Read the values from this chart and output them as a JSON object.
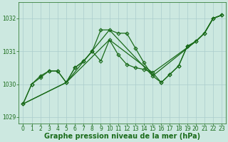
{
  "bg_color": "#cce8e0",
  "grid_color": "#aacccc",
  "line_color": "#1a6b1a",
  "xlabel": "Graphe pression niveau de la mer (hPa)",
  "ylim": [
    1028.8,
    1032.5
  ],
  "xlim": [
    -0.5,
    23.5
  ],
  "yticks": [
    1029,
    1030,
    1031,
    1032
  ],
  "xticks": [
    0,
    1,
    2,
    3,
    4,
    5,
    6,
    7,
    8,
    9,
    10,
    11,
    12,
    13,
    14,
    15,
    16,
    17,
    18,
    19,
    20,
    21,
    22,
    23
  ],
  "series_solid": [
    {
      "x": [
        0,
        1,
        2,
        3,
        4,
        5,
        6,
        7,
        8,
        9,
        10,
        11,
        12,
        13,
        14,
        15,
        16,
        17,
        18,
        19,
        20,
        21,
        22,
        23
      ],
      "y": [
        1029.4,
        1030.0,
        1030.2,
        1030.4,
        1030.4,
        1030.05,
        1030.5,
        1030.7,
        1031.0,
        1031.65,
        1031.65,
        1031.55,
        1031.55,
        1031.1,
        1030.65,
        1030.25,
        1030.05,
        1030.3,
        1030.55,
        1031.15,
        1031.3,
        1031.55,
        1032.0,
        1032.1
      ],
      "marker": "D",
      "markersize": 2.5,
      "linewidth": 0.9,
      "linestyle": "-"
    },
    {
      "x": [
        0,
        1,
        2,
        3,
        4,
        5,
        6,
        7,
        8,
        9,
        10,
        11,
        12,
        13,
        14,
        15,
        16,
        17,
        18,
        19,
        20,
        21,
        22,
        23
      ],
      "y": [
        1029.4,
        1030.0,
        1030.25,
        1030.4,
        1030.4,
        1030.05,
        1030.5,
        1030.7,
        1031.0,
        1030.7,
        1031.35,
        1030.9,
        1030.6,
        1030.5,
        1030.45,
        1030.35,
        1030.05,
        1030.3,
        1030.55,
        1031.15,
        1031.3,
        1031.55,
        1032.0,
        1032.1
      ],
      "marker": "D",
      "markersize": 2.5,
      "linewidth": 0.9,
      "linestyle": "-"
    },
    {
      "x": [
        0,
        5,
        10,
        15,
        20,
        21,
        22,
        23
      ],
      "y": [
        1029.4,
        1030.05,
        1031.65,
        1030.25,
        1031.3,
        1031.55,
        1032.0,
        1032.1
      ],
      "marker": null,
      "markersize": 0,
      "linewidth": 0.9,
      "linestyle": "-"
    },
    {
      "x": [
        0,
        5,
        10,
        15,
        20,
        21,
        22,
        23
      ],
      "y": [
        1029.4,
        1030.05,
        1031.35,
        1030.35,
        1031.3,
        1031.55,
        1032.0,
        1032.1
      ],
      "marker": null,
      "markersize": 0,
      "linewidth": 0.9,
      "linestyle": "-"
    }
  ],
  "xlabel_fontsize": 7,
  "xlabel_color": "#1a6b1a",
  "tick_color": "#1a6b1a",
  "tick_fontsize": 5.5
}
